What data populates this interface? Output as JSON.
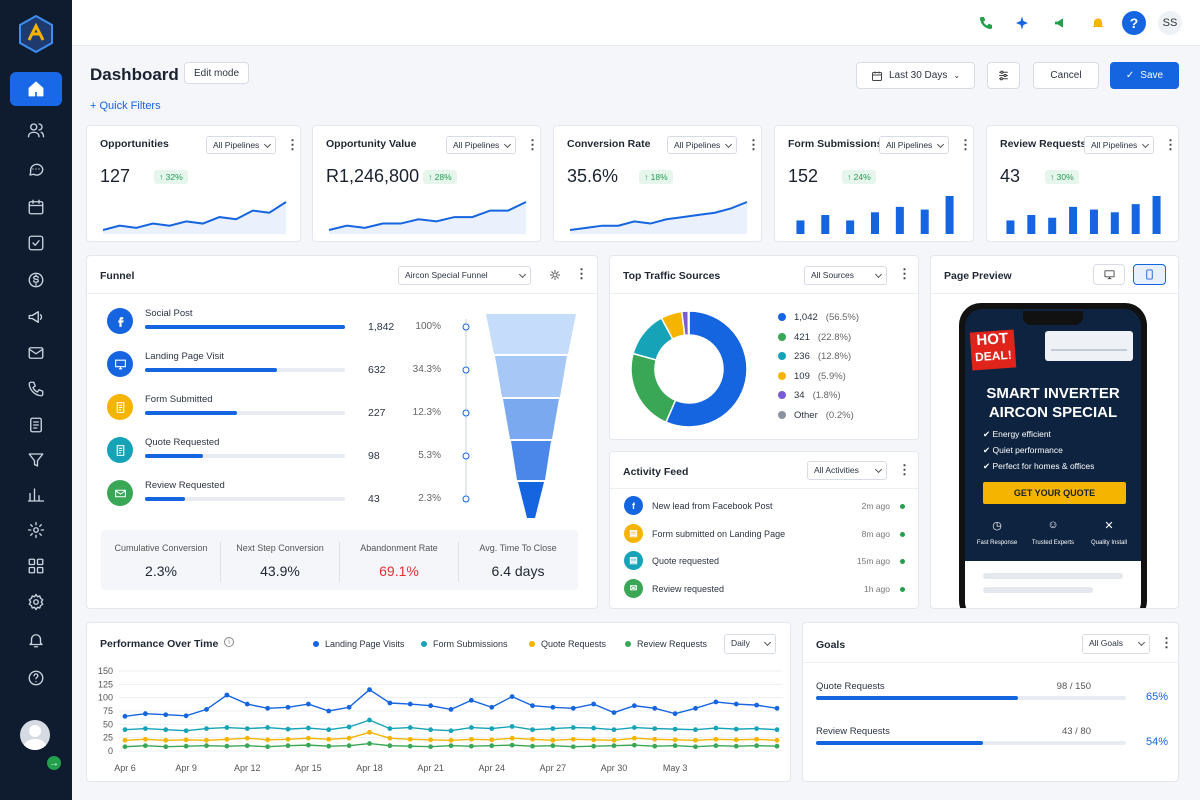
{
  "topbar": {
    "user_initials": "SS",
    "help": "?"
  },
  "header": {
    "title": "Dashboard",
    "edit_mode": "Edit mode",
    "quick_filters": "+ Quick Filters",
    "date_range": "Last 30 Days",
    "cancel": "Cancel",
    "save": "Save"
  },
  "kpis": [
    {
      "title": "Opportunities",
      "filter": "All Pipelines",
      "value": "127",
      "change": "↑ 32%",
      "chart": "line",
      "points": [
        3,
        5,
        4,
        6,
        5,
        7,
        6,
        9,
        8,
        12,
        11,
        16
      ]
    },
    {
      "title": "Opportunity Value",
      "filter": "All Pipelines",
      "value": "R1,246,800",
      "change": "↑ 28%",
      "chart": "line",
      "points": [
        3,
        5,
        4,
        6,
        6,
        8,
        7,
        9,
        9,
        12,
        12,
        16
      ]
    },
    {
      "title": "Conversion Rate",
      "filter": "All Pipelines",
      "value": "35.6%",
      "change": "↑ 18%",
      "chart": "line",
      "points": [
        3,
        4,
        5,
        5,
        7,
        6,
        8,
        9,
        10,
        11,
        13,
        16
      ]
    },
    {
      "title": "Form Submissions",
      "filter": "All Pipelines",
      "value": "152",
      "change": "↑ 24%",
      "chart": "bar",
      "bars": [
        5,
        7,
        5,
        8,
        10,
        9,
        14
      ]
    },
    {
      "title": "Review Requests",
      "filter": "All Pipelines",
      "value": "43",
      "change": "↑ 30%",
      "chart": "bar",
      "bars": [
        5,
        7,
        6,
        10,
        9,
        8,
        11,
        14
      ]
    }
  ],
  "funnel": {
    "title": "Funnel",
    "filter": "Aircon Special Funnel",
    "stages": [
      {
        "label": "Social Post",
        "count": "1,842",
        "pct": "100%",
        "fill": 1.0,
        "color": "#1564e0",
        "icon": "facebook-icon"
      },
      {
        "label": "Landing Page Visit",
        "count": "632",
        "pct": "34.3%",
        "fill": 0.66,
        "color": "#1564e0",
        "icon": "monitor-icon"
      },
      {
        "label": "Form Submitted",
        "count": "227",
        "pct": "12.3%",
        "fill": 0.46,
        "color": "#f5b400",
        "icon": "form-icon"
      },
      {
        "label": "Quote Requested",
        "count": "98",
        "pct": "5.3%",
        "fill": 0.29,
        "color": "#16a3b8",
        "icon": "quote-icon"
      },
      {
        "label": "Review Requested",
        "count": "43",
        "pct": "2.3%",
        "fill": 0.2,
        "color": "#3aa757",
        "icon": "mail-icon"
      }
    ],
    "summary": [
      {
        "label": "Cumulative Conversion",
        "value": "2.3%"
      },
      {
        "label": "Next Step Conversion",
        "value": "43.9%"
      },
      {
        "label": "Abandonment Rate",
        "value": "69.1%"
      },
      {
        "label": "Avg. Time To Close",
        "value": "6.4 days"
      }
    ]
  },
  "traffic": {
    "title": "Top Traffic Sources",
    "filter": "All Sources",
    "sources": [
      {
        "count": "1,042",
        "pct": "(56.5%)",
        "value": 56.5,
        "color": "#1564e0"
      },
      {
        "count": "421",
        "pct": "(22.8%)",
        "value": 22.8,
        "color": "#3aa757"
      },
      {
        "count": "236",
        "pct": "(12.8%)",
        "value": 12.8,
        "color": "#16a3b8"
      },
      {
        "count": "109",
        "pct": "(5.9%)",
        "value": 5.9,
        "color": "#f5b400"
      },
      {
        "count": "34",
        "pct": "(1.8%)",
        "value": 1.8,
        "color": "#7a5cd6"
      },
      {
        "count": "Other",
        "pct": "(0.2%)",
        "value": 0.2,
        "color": "#8a939f"
      }
    ]
  },
  "preview": {
    "title": "Page Preview",
    "hot": "HOT",
    "deal": "DEAL!",
    "headline1": "SMART INVERTER",
    "headline2": "AIRCON SPECIAL",
    "bullets": [
      "Energy efficient",
      "Quiet performance",
      "Perfect for homes & offices"
    ],
    "cta": "GET YOUR QUOTE",
    "features": [
      "Fast Response",
      "Trusted Experts",
      "Quality Install"
    ]
  },
  "activity": {
    "title": "Activity Feed",
    "filter": "All Activities",
    "items": [
      {
        "text": "New lead from Facebook Post",
        "time": "2m ago",
        "color": "#1564e0"
      },
      {
        "text": "Form submitted on Landing Page",
        "time": "8m ago",
        "color": "#f5b400"
      },
      {
        "text": "Quote requested",
        "time": "15m ago",
        "color": "#16a3b8"
      },
      {
        "text": "Review requested",
        "time": "1h ago",
        "color": "#3aa757"
      }
    ]
  },
  "performance": {
    "title": "Performance Over Time",
    "interval": "Daily",
    "legend": [
      {
        "name": "Landing Page Visits",
        "color": "#1564e0"
      },
      {
        "name": "Form Submissions",
        "color": "#16a3b8"
      },
      {
        "name": "Quote Requests",
        "color": "#f5b400"
      },
      {
        "name": "Review Requests",
        "color": "#3aa757"
      }
    ]
  },
  "goals": {
    "title": "Goals",
    "filter": "All Goals",
    "items": [
      {
        "label": "Quote Requests",
        "frac": "98 / 150",
        "pct": "65%",
        "value": 0.65
      },
      {
        "label": "Review Requests",
        "frac": "43 / 80",
        "pct": "54%",
        "value": 0.54
      }
    ]
  },
  "chart_data": {
    "type": "line",
    "title": "Performance Over Time",
    "x": [
      "Apr 6",
      "Apr 7",
      "Apr 8",
      "Apr 9",
      "Apr 10",
      "Apr 11",
      "Apr 12",
      "Apr 13",
      "Apr 14",
      "Apr 15",
      "Apr 16",
      "Apr 17",
      "Apr 18",
      "Apr 19",
      "Apr 20",
      "Apr 21",
      "Apr 22",
      "Apr 23",
      "Apr 24",
      "Apr 25",
      "Apr 26",
      "Apr 27",
      "Apr 28",
      "Apr 29",
      "Apr 30",
      "May 1",
      "May 2",
      "May 3",
      "May 4",
      "May 5",
      "May 6",
      "May 7",
      "May 8"
    ],
    "xticks": [
      "Apr 6",
      "Apr 9",
      "Apr 12",
      "Apr 15",
      "Apr 18",
      "Apr 21",
      "Apr 24",
      "Apr 27",
      "Apr 30",
      "May 3"
    ],
    "yticks": [
      0,
      25,
      50,
      75,
      100,
      125,
      150
    ],
    "ylim": [
      0,
      150
    ],
    "series": [
      {
        "name": "Landing Page Visits",
        "color": "#1564e0",
        "values": [
          65,
          70,
          68,
          66,
          78,
          105,
          88,
          80,
          82,
          88,
          75,
          82,
          115,
          90,
          88,
          85,
          78,
          95,
          82,
          102,
          85,
          82,
          80,
          88,
          72,
          85,
          80,
          70,
          80,
          92,
          88,
          86,
          80
        ]
      },
      {
        "name": "Form Submissions",
        "color": "#16a3b8",
        "values": [
          40,
          42,
          40,
          38,
          42,
          44,
          42,
          44,
          41,
          43,
          40,
          45,
          58,
          42,
          44,
          40,
          38,
          44,
          42,
          46,
          40,
          42,
          44,
          43,
          40,
          44,
          42,
          41,
          40,
          43,
          41,
          42,
          40
        ]
      },
      {
        "name": "Quote Requests",
        "color": "#f5b400",
        "values": [
          20,
          22,
          20,
          21,
          20,
          22,
          24,
          21,
          22,
          24,
          22,
          24,
          35,
          24,
          22,
          21,
          20,
          22,
          21,
          24,
          22,
          20,
          22,
          21,
          20,
          24,
          22,
          21,
          20,
          22,
          21,
          22,
          20
        ]
      },
      {
        "name": "Review Requests",
        "color": "#3aa757",
        "values": [
          8,
          10,
          8,
          9,
          10,
          9,
          10,
          8,
          10,
          11,
          9,
          10,
          14,
          10,
          9,
          8,
          10,
          9,
          10,
          11,
          9,
          10,
          8,
          9,
          10,
          11,
          9,
          10,
          8,
          10,
          9,
          10,
          9
        ]
      }
    ]
  }
}
